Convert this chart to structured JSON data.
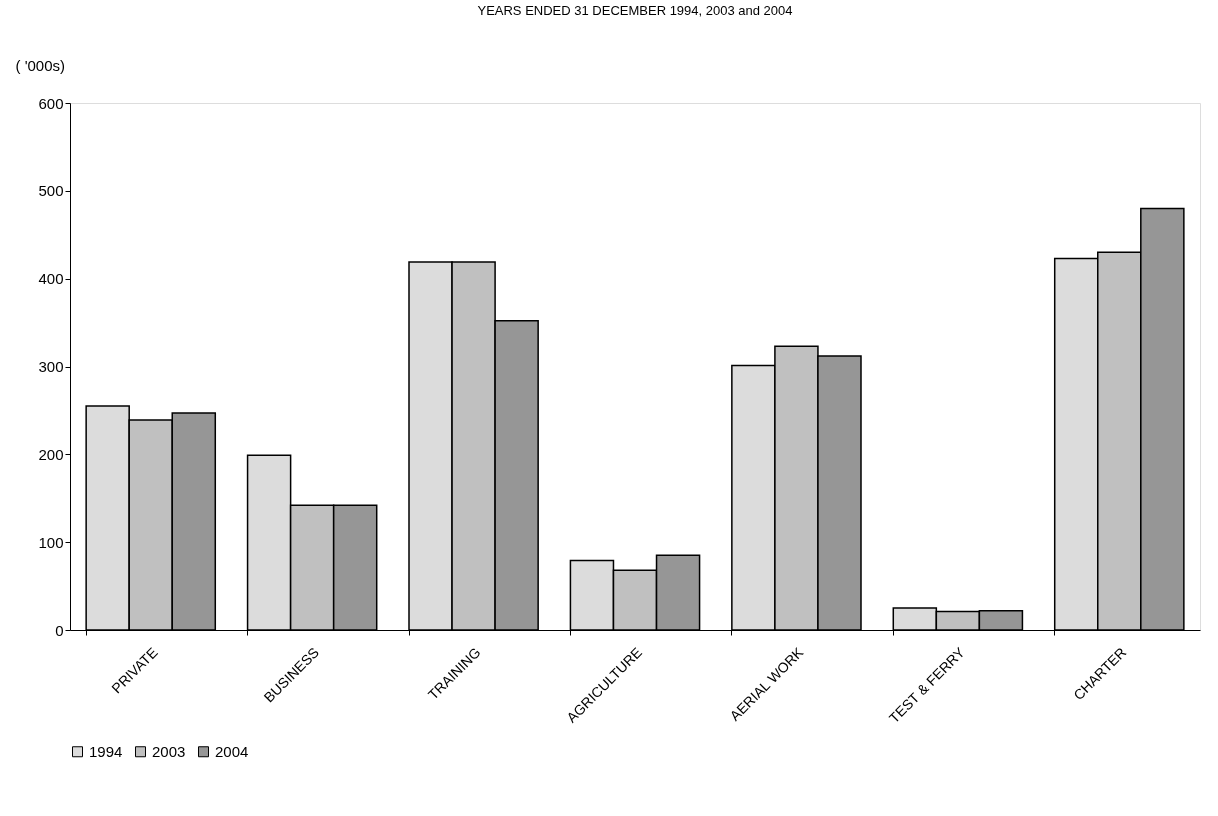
{
  "chart_data": {
    "type": "bar",
    "title": "YEARS ENDED 31 DECEMBER 1994, 2003 and 2004",
    "ylabel": "( '000s)",
    "categories": [
      "PRIVATE",
      "BUSINESS",
      "TRAINING",
      "AGRICULTURE",
      "AERIAL WORK",
      "TEST & FERRY",
      "CHARTER"
    ],
    "series": [
      {
        "name": "1994",
        "color": "#dcdcdc",
        "values": [
          255,
          199,
          419,
          79,
          301,
          25,
          423
        ]
      },
      {
        "name": "2003",
        "color": "#c0c0c0",
        "values": [
          239,
          142,
          419,
          68,
          323,
          21,
          430
        ]
      },
      {
        "name": "2004",
        "color": "#969696",
        "values": [
          247,
          142,
          352,
          85,
          312,
          22,
          480
        ]
      }
    ],
    "ylim": [
      0,
      600
    ],
    "yticks": [
      0,
      100,
      200,
      300,
      400,
      500,
      600
    ],
    "grid": false,
    "legend": "bottom"
  }
}
